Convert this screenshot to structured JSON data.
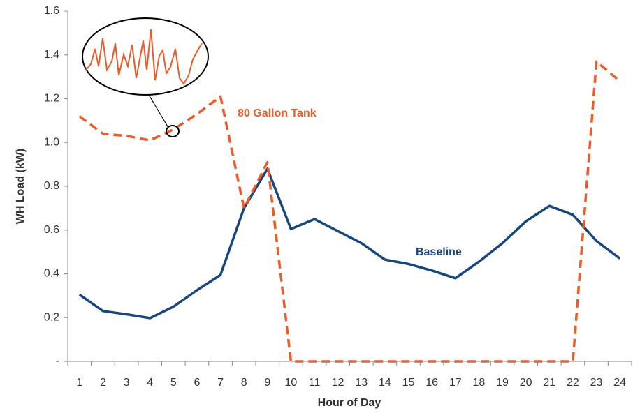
{
  "chart_data": {
    "type": "line",
    "x_label": "Hour of Day",
    "y_label": "WH Load (kW)",
    "categories": [
      "1",
      "2",
      "3",
      "4",
      "5",
      "6",
      "7",
      "8",
      "9",
      "10",
      "11",
      "12",
      "13",
      "14",
      "15",
      "16",
      "17",
      "18",
      "19",
      "20",
      "21",
      "22",
      "23",
      "24"
    ],
    "series": [
      {
        "name": "Baseline",
        "color": "#17467e",
        "dashed": false,
        "values": [
          0.305,
          0.23,
          0.215,
          0.198,
          0.25,
          0.325,
          0.395,
          0.7,
          0.88,
          0.605,
          0.65,
          0.595,
          0.54,
          0.465,
          0.445,
          0.415,
          0.38,
          0.455,
          0.54,
          0.64,
          0.71,
          0.67,
          0.55,
          0.47
        ]
      },
      {
        "name": "80 Gallon Tank",
        "color": "#ef5a2a",
        "dashed": true,
        "values": [
          1.12,
          1.04,
          1.03,
          1.01,
          1.06,
          1.13,
          1.21,
          0.7,
          0.91,
          0,
          0,
          0,
          0,
          0,
          0,
          0,
          0,
          0,
          0,
          0,
          0,
          0,
          1.37,
          1.28
        ]
      }
    ],
    "ylim": [
      0,
      1.6
    ],
    "yticks": [
      {
        "value": 0,
        "label": "-"
      },
      0.2,
      0.4,
      0.6,
      0.8,
      {
        "value": 1.0,
        "label": "1.0"
      },
      1.2,
      1.4,
      1.6
    ],
    "grid": false
  }
}
